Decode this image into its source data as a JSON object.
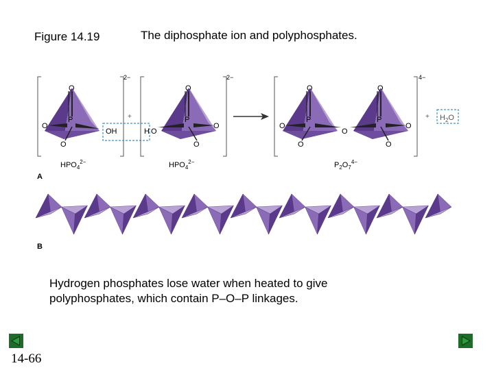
{
  "header": {
    "figure_label": "Figure 14.19",
    "title": "The diphosphate ion and polyphosphates."
  },
  "diagram": {
    "panel_a_label": "A",
    "panel_b_label": "B",
    "atom_p": "P",
    "atom_o": "O",
    "oh_label": "OH",
    "h_label": "H",
    "charge_2minus": "2−",
    "charge_4minus": "4−",
    "plus_sign": "+",
    "species": {
      "hpo4_left": [
        "HPO",
        "4",
        "2−"
      ],
      "hpo4_right": [
        "HPO",
        "4",
        "2−"
      ],
      "p2o7": [
        "P",
        "2",
        "O",
        "7",
        "4−"
      ],
      "water": [
        "H",
        "2",
        "O"
      ]
    },
    "colors": {
      "tetra_dark": "#5b3a8c",
      "tetra_mid": "#8b6bb8",
      "tetra_light": "#b9a3d6",
      "highlight_box": "#3a8fd0"
    }
  },
  "caption": {
    "line1": "Hydrogen phosphates lose water when heated to give",
    "line2": "polyphosphates, which contain P–O–P linkages."
  },
  "footer": {
    "page_number": "14-66"
  }
}
